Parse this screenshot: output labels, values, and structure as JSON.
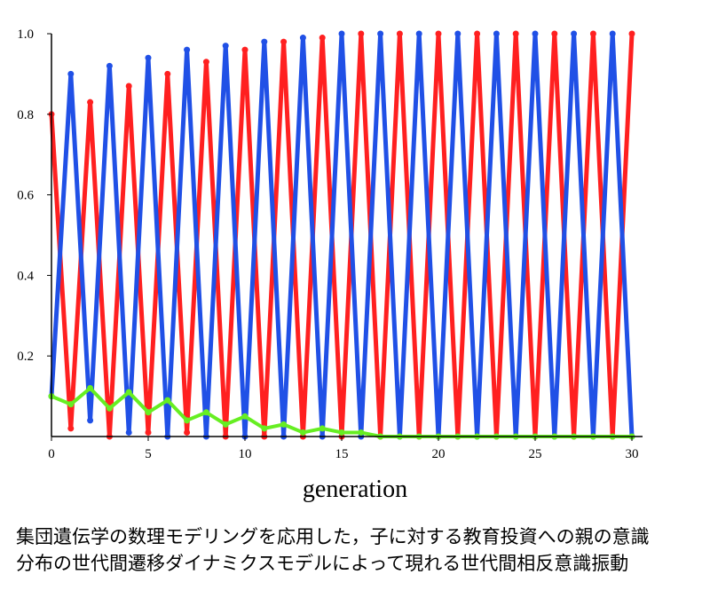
{
  "caption": {
    "line1": "集団遺伝学の数理モデリングを応用した，子に対する教育投資への親の意識",
    "line2": "分布の世代間遷移ダイナミクスモデルによって現れる世代間相反意識振動"
  },
  "chart_data": {
    "type": "line",
    "title": "",
    "xlabel": "generation",
    "ylabel": "",
    "xlim": [
      0,
      30
    ],
    "ylim": [
      0,
      1.0
    ],
    "xticks": [
      "0",
      "5",
      "10",
      "15",
      "20",
      "25",
      "30"
    ],
    "yticks": [
      "0.2",
      "0.4",
      "0.6",
      "0.8",
      "1.0"
    ],
    "x": [
      0,
      1,
      2,
      3,
      4,
      5,
      6,
      7,
      8,
      9,
      10,
      11,
      12,
      13,
      14,
      15,
      16,
      17,
      18,
      19,
      20,
      21,
      22,
      23,
      24,
      25,
      26,
      27,
      28,
      29,
      30
    ],
    "series": [
      {
        "color": "#ff2020",
        "values": [
          0.8,
          0.02,
          0.83,
          0.0,
          0.87,
          0.01,
          0.9,
          0.01,
          0.93,
          0.0,
          0.96,
          0.0,
          0.98,
          0.0,
          0.99,
          0.0,
          1.0,
          0.0,
          1.0,
          0.0,
          1.0,
          0.0,
          1.0,
          0.0,
          1.0,
          0.0,
          1.0,
          0.0,
          1.0,
          0.0,
          1.0
        ]
      },
      {
        "color": "#2050e6",
        "values": [
          0.1,
          0.9,
          0.04,
          0.92,
          0.01,
          0.94,
          0.0,
          0.96,
          0.0,
          0.97,
          0.0,
          0.98,
          0.0,
          0.99,
          0.0,
          1.0,
          0.0,
          1.0,
          0.0,
          1.0,
          0.0,
          1.0,
          0.0,
          1.0,
          0.0,
          1.0,
          0.0,
          1.0,
          0.0,
          1.0,
          0.0
        ]
      },
      {
        "color": "#66ee22",
        "values": [
          0.1,
          0.08,
          0.12,
          0.07,
          0.11,
          0.06,
          0.09,
          0.04,
          0.06,
          0.03,
          0.05,
          0.02,
          0.03,
          0.01,
          0.02,
          0.01,
          0.01,
          0.0,
          0.0,
          0.0,
          0.0,
          0.0,
          0.0,
          0.0,
          0.0,
          0.0,
          0.0,
          0.0,
          0.0,
          0.0,
          0.0
        ]
      }
    ],
    "grid": false,
    "legend": "none"
  }
}
